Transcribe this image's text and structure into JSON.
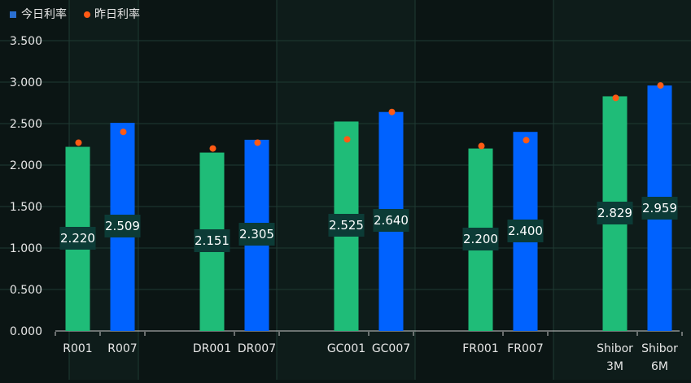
{
  "chart_data": {
    "type": "bar",
    "categories": [
      "R001",
      "R007",
      "DR001",
      "DR007",
      "GC001",
      "GC007",
      "FR001",
      "FR007",
      "Shibor 3M",
      "Shibor 6M"
    ],
    "series": [
      {
        "name": "今日利率",
        "values": [
          2.22,
          2.509,
          2.151,
          2.305,
          2.525,
          2.64,
          2.2,
          2.4,
          2.829,
          2.959
        ],
        "bar_colors": [
          "#1fbc78",
          "#0062ff",
          "#1fbc78",
          "#0062ff",
          "#1fbc78",
          "#0062ff",
          "#1fbc78",
          "#0062ff",
          "#1fbc78",
          "#0062ff"
        ],
        "value_labels": [
          "2.220",
          "2.509",
          "2.151",
          "2.305",
          "2.525",
          "2.640",
          "2.200",
          "2.400",
          "2.829",
          "2.959"
        ]
      },
      {
        "name": "昨日利率",
        "values": [
          2.27,
          2.4,
          2.2,
          2.27,
          2.31,
          2.64,
          2.23,
          2.3,
          2.81,
          2.96
        ],
        "color": "#ff5a14"
      }
    ],
    "legend": {
      "position": "top-left",
      "items": [
        {
          "label": "今日利率",
          "color": "#2a6fd1",
          "marker": "square"
        },
        {
          "label": "昨日利率",
          "color": "#ff5a14",
          "marker": "circle"
        }
      ]
    },
    "y_ticks": [
      "0.000",
      "0.500",
      "1.000",
      "1.500",
      "2.000",
      "2.500",
      "3.000",
      "3.500"
    ],
    "ylim": [
      0,
      3.5
    ],
    "grid": true,
    "colors": {
      "background": "#0b1514",
      "band": "#0e1c1a",
      "grid": "#1f3a33",
      "axis": "#c8c8c8",
      "text": "#e6e6e6",
      "label_box": "#0c3b36",
      "label_text": "#ffffff"
    },
    "title": "",
    "xlabel": "",
    "ylabel": ""
  }
}
